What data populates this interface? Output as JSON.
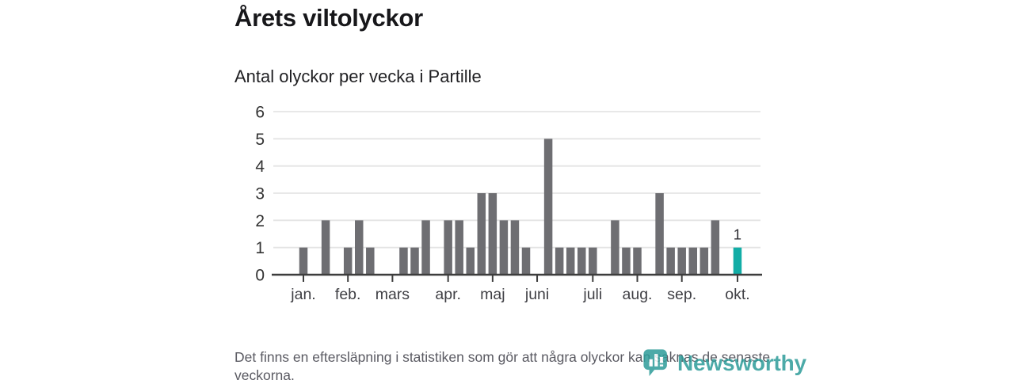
{
  "header": {
    "title": "Årets viltolyckor",
    "subtitle": "Antal olyckor per vecka i Partille"
  },
  "chart_data": {
    "type": "bar",
    "title": "Årets viltolyckor",
    "subtitle": "Antal olyckor per vecka i Partille",
    "x_unit": "week",
    "values": [
      1,
      0,
      2,
      0,
      1,
      2,
      1,
      0,
      0,
      1,
      1,
      2,
      0,
      2,
      2,
      1,
      3,
      3,
      2,
      2,
      1,
      0,
      5,
      1,
      1,
      1,
      1,
      0,
      2,
      1,
      1,
      0,
      3,
      1,
      1,
      1,
      1,
      2,
      0,
      1
    ],
    "highlight_index": 39,
    "highlight_value_label": "1",
    "yticks": [
      0,
      1,
      2,
      3,
      4,
      5,
      6
    ],
    "ylim": [
      0,
      6
    ],
    "grid": "horizontal",
    "month_ticks": [
      {
        "label": "jan.",
        "week": 0
      },
      {
        "label": "feb.",
        "week": 4
      },
      {
        "label": "mars",
        "week": 8
      },
      {
        "label": "apr.",
        "week": 13
      },
      {
        "label": "maj",
        "week": 17
      },
      {
        "label": "juni",
        "week": 21
      },
      {
        "label": "juli",
        "week": 26
      },
      {
        "label": "aug.",
        "week": 30
      },
      {
        "label": "sep.",
        "week": 34
      },
      {
        "label": "okt.",
        "week": 39
      }
    ],
    "bar_color": "#6e6e72",
    "highlight_color": "#12ada6",
    "grid_color": "#e4e4e4",
    "axis_color": "#3d3d3d",
    "tick_label_color": "#3f3f44",
    "value_label_color": "#2e2e33"
  },
  "footer": {
    "note": "Det finns en eftersläpning i statistiken som gör att några olyckor kan saknas de senaste veckorna.",
    "logo_text": "Newsworthy",
    "logo_color": "#2d9c99"
  }
}
